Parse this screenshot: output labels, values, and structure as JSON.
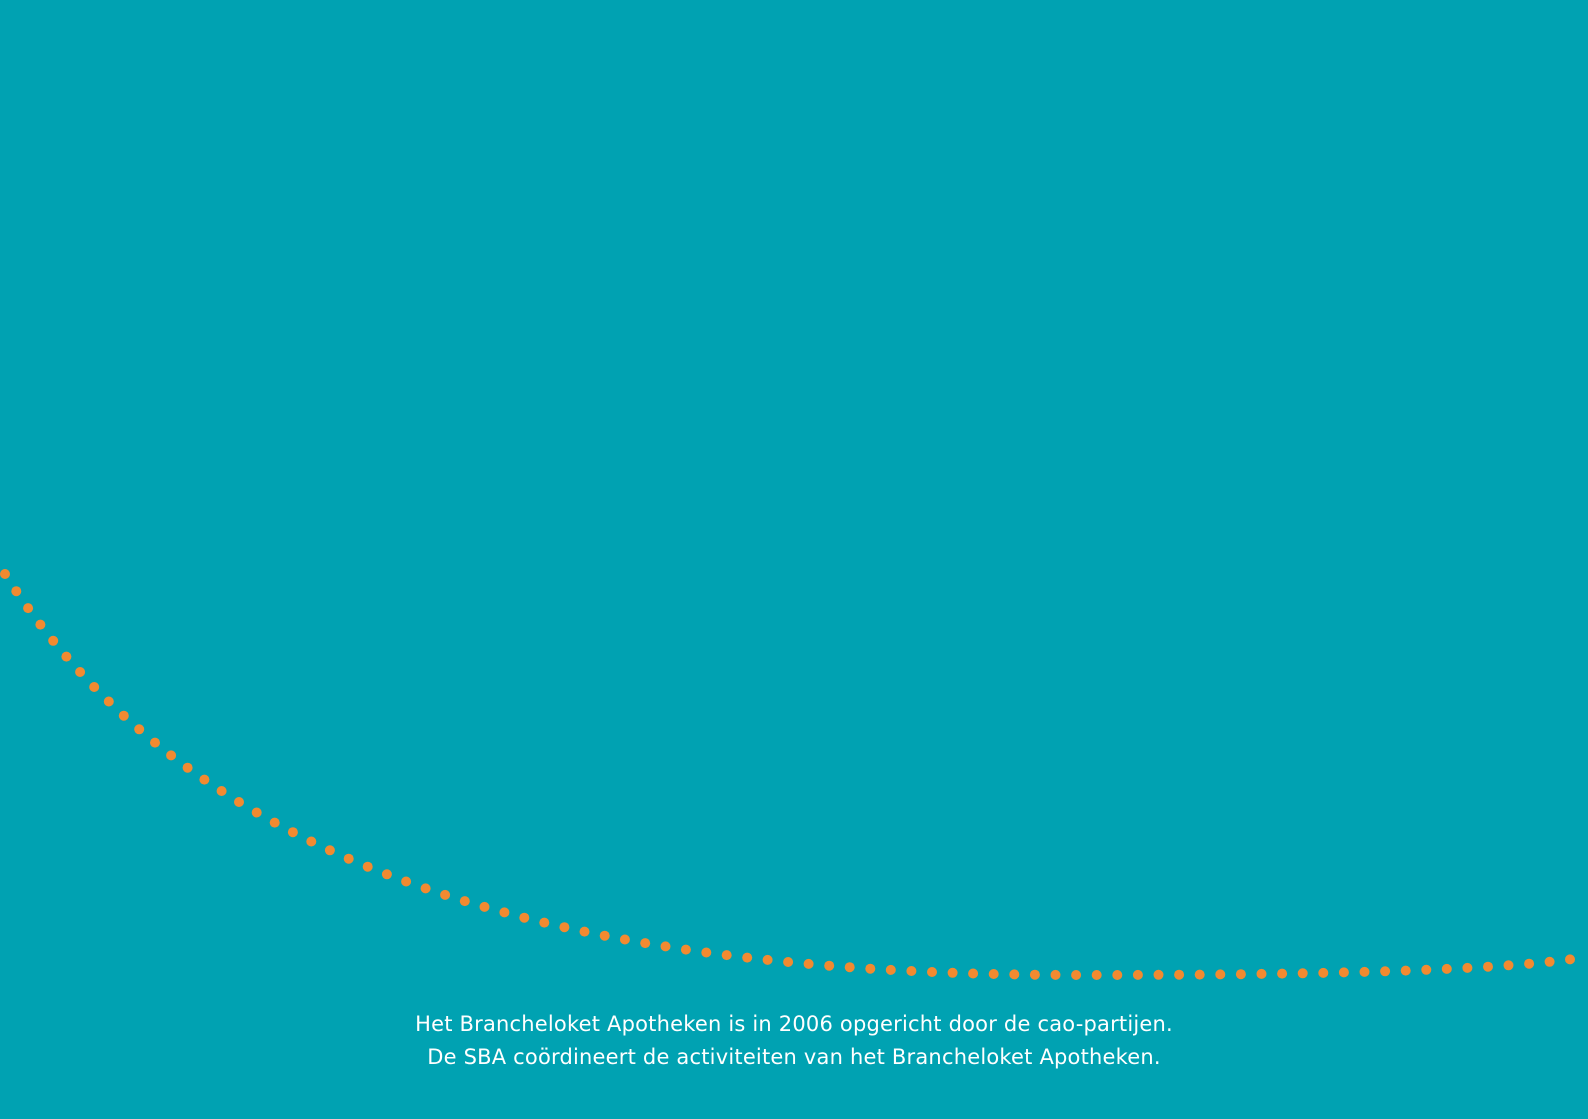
{
  "colors": {
    "background": "#00a2b2",
    "dot_accent": "#f28a30",
    "text": "#ffffff"
  },
  "footer": {
    "line1": "Het Brancheloket Apotheken is in 2006 opgericht door de cao-partijen.",
    "line2": "De SBA coördineert de activiteiten van het Brancheloket Apotheken."
  }
}
